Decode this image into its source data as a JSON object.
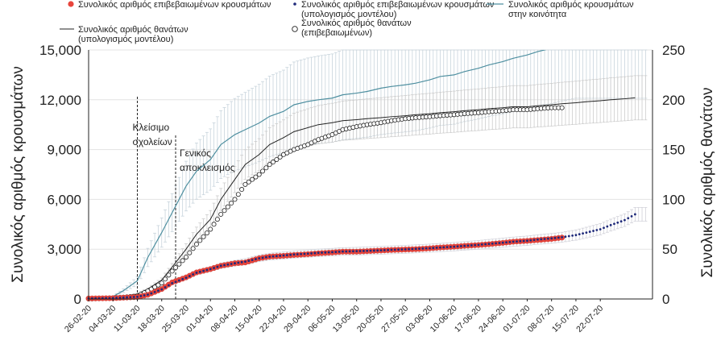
{
  "chart_data": {
    "type": "line",
    "x_tick_labels": [
      "26-02-20",
      "04-03-20",
      "11-03-20",
      "18-03-20",
      "25-03-20",
      "01-04-20",
      "08-04-20",
      "15-04-20",
      "22-04-20",
      "29-04-20",
      "06-05-20",
      "13-05-20",
      "20-05-20",
      "27-05-20",
      "03-06-20",
      "10-06-20",
      "17-06-20",
      "24-06-20",
      "01-07-20",
      "08-07-20",
      "15-07-20",
      "22-07-20"
    ],
    "y_left": {
      "label": "Συνολικός αριθμός κρουσμάτων",
      "ylim": [
        0,
        15000
      ],
      "ticks": [
        "0",
        "3,000",
        "6,000",
        "9,000",
        "12,000",
        "15,000"
      ],
      "tick_values": [
        0,
        3000,
        6000,
        9000,
        12000,
        15000
      ]
    },
    "y_right": {
      "label": "Συνολικός αριθμός θανάτων",
      "ylim": [
        0,
        250
      ],
      "ticks": [
        "0",
        "50",
        "100",
        "150",
        "200",
        "250"
      ],
      "tick_values": [
        0,
        50,
        100,
        150,
        200,
        250
      ]
    },
    "grid": true,
    "legend_position": "top",
    "series": [
      {
        "name": "Συνολικός αριθμός επιβεβαιωμένων κρουσμάτων",
        "axis": "left",
        "marker": "filled-circle",
        "color": "#e8453c",
        "x": [
          0,
          7,
          14,
          17,
          21,
          24,
          28,
          31,
          35,
          38,
          42,
          45,
          49,
          52,
          56,
          59,
          63,
          66,
          70,
          73,
          77,
          80,
          84,
          87,
          91,
          94,
          98,
          101,
          105,
          108,
          112,
          115,
          119,
          122,
          126,
          129,
          133,
          136
        ],
        "y": [
          31,
          50,
          120,
          250,
          600,
          1000,
          1300,
          1600,
          1800,
          2000,
          2150,
          2200,
          2450,
          2550,
          2600,
          2650,
          2700,
          2750,
          2800,
          2850,
          2850,
          2880,
          2920,
          2950,
          2980,
          3000,
          3050,
          3100,
          3150,
          3200,
          3250,
          3300,
          3380,
          3450,
          3500,
          3550,
          3620,
          3700
        ]
      },
      {
        "name": "Συνολικός αριθμός επιβεβαιωμένων κρουσμάτων",
        "name2": "(υπολογισμός μοντέλου)",
        "axis": "left",
        "marker": "small-dot",
        "color": "#1f2a7a",
        "x": [
          0,
          7,
          14,
          17,
          21,
          24,
          28,
          31,
          35,
          38,
          42,
          45,
          49,
          52,
          56,
          59,
          63,
          66,
          70,
          73,
          77,
          80,
          84,
          87,
          91,
          94,
          98,
          101,
          105,
          108,
          112,
          115,
          119,
          122,
          126,
          129,
          133,
          136,
          140,
          143,
          147,
          150,
          154,
          157
        ],
        "y": [
          30,
          60,
          130,
          260,
          580,
          950,
          1280,
          1580,
          1800,
          2000,
          2150,
          2250,
          2450,
          2550,
          2620,
          2680,
          2730,
          2780,
          2820,
          2860,
          2880,
          2900,
          2930,
          2960,
          2990,
          3020,
          3060,
          3100,
          3150,
          3200,
          3260,
          3320,
          3390,
          3450,
          3510,
          3580,
          3650,
          3720,
          3850,
          4000,
          4200,
          4450,
          4750,
          5100
        ]
      },
      {
        "name": "Συνολικός αριθμός κρουσμάτων",
        "name2": "στην κοινότητα",
        "axis": "left",
        "marker": "line",
        "color": "#4e8fa0",
        "x": [
          0,
          7,
          10,
          14,
          17,
          21,
          24,
          28,
          31,
          35,
          38,
          42,
          45,
          49,
          52,
          56,
          59,
          63,
          66,
          70,
          73,
          77,
          80,
          84,
          87,
          91,
          94,
          98,
          101,
          105,
          108,
          112,
          115,
          119,
          122,
          126,
          129,
          133,
          136,
          140
        ],
        "y": [
          50,
          150,
          500,
          1100,
          2500,
          4000,
          5200,
          6800,
          7700,
          8400,
          9300,
          9900,
          10200,
          10600,
          11000,
          11300,
          11700,
          11900,
          12000,
          12100,
          12300,
          12400,
          12500,
          12700,
          12800,
          12900,
          13000,
          13200,
          13400,
          13500,
          13700,
          13900,
          14100,
          14300,
          14500,
          14700,
          14900,
          15100,
          15300,
          15500
        ]
      },
      {
        "name": "Συνολικός αριθμός θανάτων",
        "name2": "(υπολογισμός μοντέλου)",
        "axis": "right",
        "marker": "line",
        "color": "#222222",
        "x": [
          0,
          7,
          14,
          17,
          21,
          24,
          28,
          31,
          35,
          38,
          42,
          45,
          49,
          52,
          56,
          59,
          63,
          66,
          70,
          73,
          77,
          80,
          84,
          87,
          91,
          94,
          98,
          101,
          105,
          108,
          112,
          115,
          119,
          122,
          126,
          129,
          133,
          136,
          140,
          143,
          147,
          150,
          154,
          157
        ],
        "y": [
          0,
          1,
          5,
          10,
          19,
          32,
          50,
          65,
          80,
          100,
          120,
          135,
          145,
          155,
          162,
          168,
          172,
          175,
          177,
          179,
          180,
          181,
          182,
          183,
          184,
          185,
          186,
          187,
          188,
          189,
          190,
          191,
          192,
          193,
          193,
          194,
          195,
          196,
          197,
          198,
          199,
          200,
          201,
          202
        ]
      },
      {
        "name": "Συνολικός αριθμός θανάτων",
        "name2": "(επιβεβαιωμένων)",
        "axis": "right",
        "marker": "open-circle",
        "color": "#222222",
        "x": [
          0,
          7,
          14,
          17,
          21,
          24,
          28,
          31,
          35,
          38,
          42,
          45,
          49,
          52,
          56,
          59,
          63,
          66,
          70,
          73,
          77,
          80,
          84,
          87,
          91,
          94,
          98,
          101,
          105,
          108,
          112,
          115,
          119,
          122,
          126,
          129,
          133,
          136
        ],
        "y": [
          0,
          1,
          3,
          8,
          16,
          28,
          42,
          55,
          70,
          85,
          100,
          115,
          125,
          135,
          145,
          150,
          155,
          160,
          165,
          170,
          173,
          175,
          177,
          179,
          181,
          182,
          183,
          184,
          185,
          186,
          187,
          188,
          189,
          190,
          190,
          191,
          192,
          192
        ]
      }
    ],
    "annotations": [
      {
        "text": [
          "Κλείσιμο",
          "σχολείων"
        ],
        "x": 14
      },
      {
        "text": [
          "Γενικός",
          "αποκλεισμός"
        ],
        "x": 25
      }
    ]
  }
}
